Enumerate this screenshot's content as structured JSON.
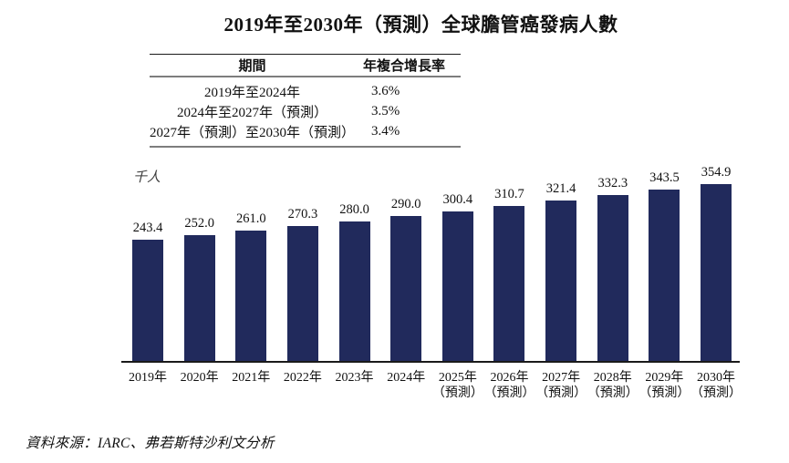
{
  "title": "2019年至2030年（預測）全球膽管癌發病人數",
  "cagr_table": {
    "headers": {
      "period": "期間",
      "cagr": "年複合增長率"
    },
    "rows": [
      {
        "period": "2019年至2024年",
        "cagr": "3.6%"
      },
      {
        "period": "2024年至2027年（預測）",
        "cagr": "3.5%"
      },
      {
        "period": "2027年（預測）至2030年（預測）",
        "cagr": "3.4%"
      }
    ]
  },
  "chart_data": {
    "type": "bar",
    "title": "2019年至2030年（預測）全球膽管癌發病人數",
    "unit_label": "千人",
    "ylabel": "千人",
    "categories": [
      "2019年",
      "2020年",
      "2021年",
      "2022年",
      "2023年",
      "2024年",
      "2025年",
      "2026年",
      "2027年",
      "2028年",
      "2029年",
      "2030年"
    ],
    "category_notes": [
      "",
      "",
      "",
      "",
      "",
      "",
      "（預測）",
      "（預測）",
      "（預測）",
      "（預測）",
      "（預測）",
      "（預測）"
    ],
    "values": [
      243.4,
      252.0,
      261.0,
      270.3,
      280.0,
      290.0,
      300.4,
      310.7,
      321.4,
      332.3,
      343.5,
      354.9
    ],
    "value_labels": [
      "243.4",
      "252.0",
      "261.0",
      "270.3",
      "280.0",
      "290.0",
      "300.4",
      "310.7",
      "321.4",
      "332.3",
      "343.5",
      "354.9"
    ],
    "ylim": [
      0,
      355
    ],
    "grid": false,
    "legend": "none",
    "bar_color": "#212A5C"
  },
  "source": "資料來源：IARC、弗若斯特沙利文分析"
}
